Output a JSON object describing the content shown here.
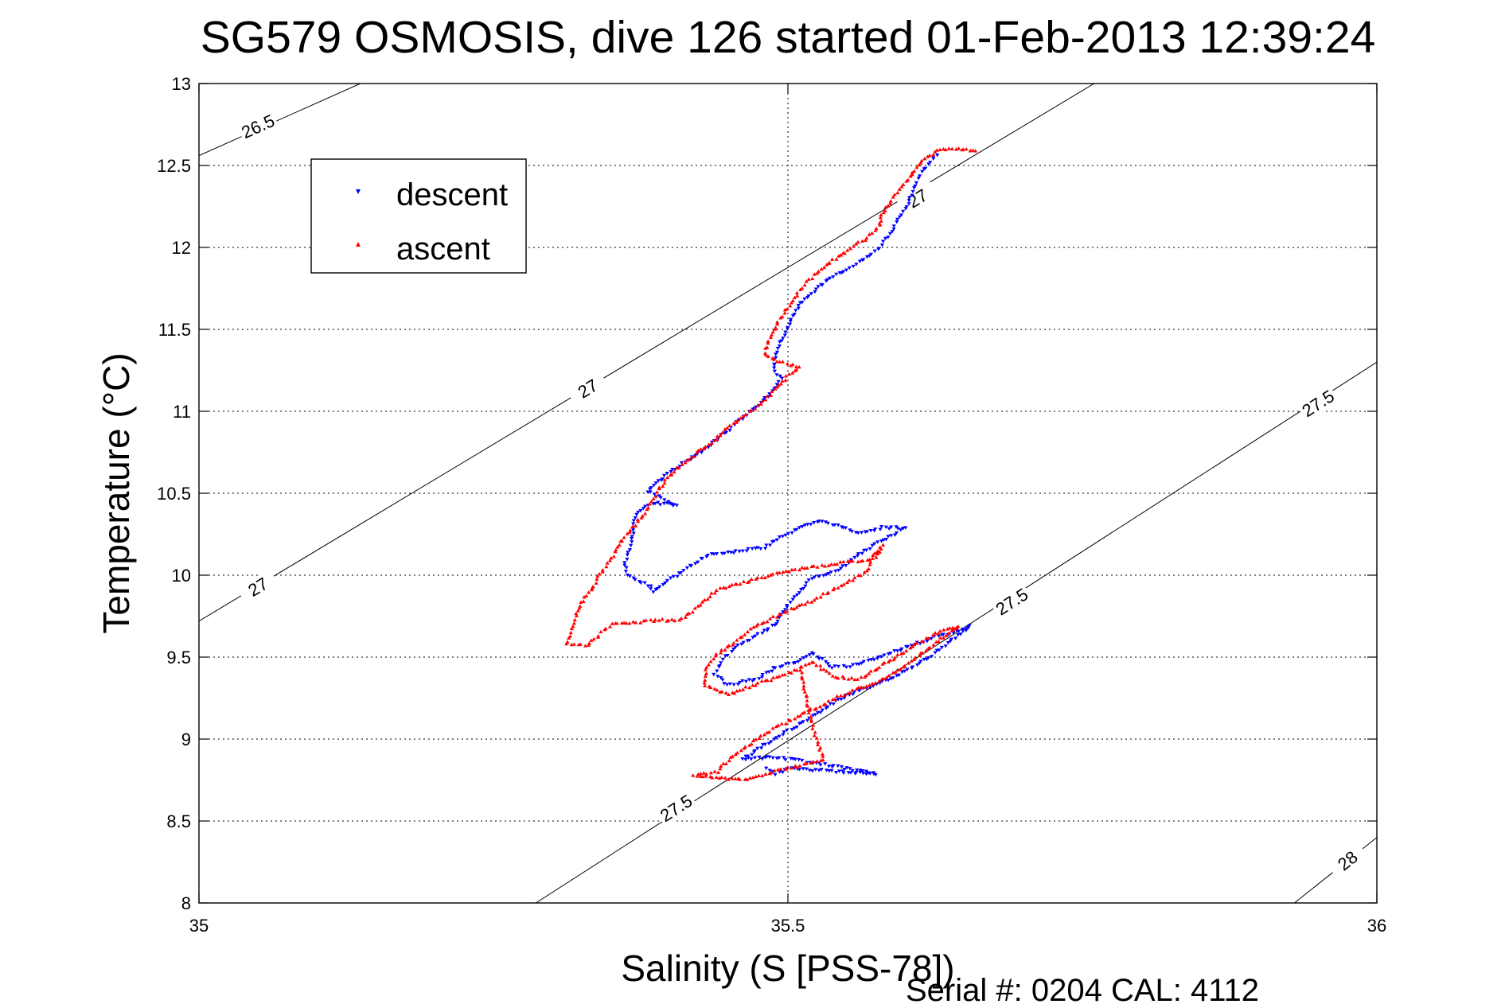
{
  "chart_data": {
    "type": "scatter",
    "title": "SG579 OSMOSIS, dive 126 started 01-Feb-2013 12:39:24",
    "xlabel": "Salinity (S [PSS-78])",
    "ylabel": "Temperature (°C)",
    "footnote": "Serial #: 0204  CAL: 4112",
    "xlim": [
      35,
      36
    ],
    "ylim": [
      8,
      13
    ],
    "x_ticks": [
      35,
      35.5,
      36
    ],
    "x_tick_labels": [
      "35",
      "35.5",
      "36"
    ],
    "y_ticks": [
      8,
      8.5,
      9,
      9.5,
      10,
      10.5,
      11,
      11.5,
      12,
      12.5,
      13
    ],
    "y_tick_labels": [
      "8",
      "8.5",
      "9",
      "9.5",
      "10",
      "10.5",
      "11",
      "11.5",
      "12",
      "12.5",
      "13"
    ],
    "grid": true,
    "legend_position": "top-left",
    "isopycnals": [
      {
        "label": "26.5",
        "points": [
          [
            35,
            12.56
          ],
          [
            35.137,
            13.0
          ]
        ],
        "label_at": [
          35.05,
          12.74
        ]
      },
      {
        "label": "27",
        "points": [
          [
            35,
            9.72
          ],
          [
            35.76,
            13.0
          ]
        ],
        "label_at": [
          35.05,
          9.93
        ]
      },
      {
        "label": "27",
        "points": [
          [
            35,
            9.72
          ],
          [
            35.76,
            13.0
          ]
        ],
        "label_at": [
          35.33,
          11.14
        ]
      },
      {
        "label": "27",
        "points": [
          [
            35,
            9.72
          ],
          [
            35.76,
            13.0
          ]
        ],
        "label_at": [
          35.61,
          12.3
        ]
      },
      {
        "label": "27.5",
        "points": [
          [
            35.286,
            8.0
          ],
          [
            36,
            11.3
          ]
        ],
        "label_at": [
          35.405,
          8.58
        ]
      },
      {
        "label": "27.5",
        "points": [
          [
            35.286,
            8.0
          ],
          [
            36,
            11.3
          ]
        ],
        "label_at": [
          35.69,
          9.84
        ]
      },
      {
        "label": "27.5",
        "points": [
          [
            35.286,
            8.0
          ],
          [
            36,
            11.3
          ]
        ],
        "label_at": [
          35.95,
          11.05
        ]
      },
      {
        "label": "28",
        "points": [
          [
            35.93,
            8.0
          ],
          [
            36,
            8.4
          ]
        ],
        "label_at": [
          35.975,
          8.26
        ]
      }
    ],
    "series": [
      {
        "name": "descent",
        "color": "#0000ff",
        "marker": "triangle-down",
        "path": [
          [
            35.626,
            12.57
          ],
          [
            35.621,
            12.52
          ],
          [
            35.614,
            12.46
          ],
          [
            35.61,
            12.4
          ],
          [
            35.606,
            12.34
          ],
          [
            35.603,
            12.28
          ],
          [
            35.598,
            12.22
          ],
          [
            35.592,
            12.15
          ],
          [
            35.585,
            12.07
          ],
          [
            35.578,
            12.0
          ],
          [
            35.565,
            11.93
          ],
          [
            35.548,
            11.86
          ],
          [
            35.532,
            11.79
          ],
          [
            35.518,
            11.71
          ],
          [
            35.508,
            11.63
          ],
          [
            35.502,
            11.55
          ],
          [
            35.497,
            11.47
          ],
          [
            35.492,
            11.4
          ],
          [
            35.489,
            11.33
          ],
          [
            35.488,
            11.26
          ],
          [
            35.494,
            11.2
          ],
          [
            35.49,
            11.15
          ],
          [
            35.483,
            11.09
          ],
          [
            35.474,
            11.03
          ],
          [
            35.461,
            10.96
          ],
          [
            35.45,
            10.89
          ],
          [
            35.44,
            10.83
          ],
          [
            35.428,
            10.76
          ],
          [
            35.415,
            10.7
          ],
          [
            35.4,
            10.63
          ],
          [
            35.39,
            10.57
          ],
          [
            35.381,
            10.51
          ],
          [
            35.405,
            10.43
          ],
          [
            35.387,
            10.44
          ],
          [
            35.375,
            10.4
          ],
          [
            35.37,
            10.33
          ],
          [
            35.368,
            10.24
          ],
          [
            35.366,
            10.16
          ],
          [
            35.362,
            10.08
          ],
          [
            35.363,
            10.0
          ],
          [
            35.383,
            9.93
          ],
          [
            35.385,
            9.9
          ],
          [
            35.43,
            10.12
          ],
          [
            35.48,
            10.17
          ],
          [
            35.495,
            10.24
          ],
          [
            35.515,
            10.3
          ],
          [
            35.53,
            10.33
          ],
          [
            35.56,
            10.26
          ],
          [
            35.58,
            10.29
          ],
          [
            35.6,
            10.29
          ],
          [
            35.565,
            10.15
          ],
          [
            35.545,
            10.04
          ],
          [
            35.52,
            9.98
          ],
          [
            35.5,
            9.82
          ],
          [
            35.49,
            9.71
          ],
          [
            35.48,
            9.66
          ],
          [
            35.458,
            9.57
          ],
          [
            35.445,
            9.49
          ],
          [
            35.438,
            9.4
          ],
          [
            35.449,
            9.33
          ],
          [
            35.475,
            9.37
          ],
          [
            35.49,
            9.44
          ],
          [
            35.507,
            9.47
          ],
          [
            35.52,
            9.53
          ],
          [
            35.538,
            9.44
          ],
          [
            35.555,
            9.45
          ],
          [
            35.58,
            9.51
          ],
          [
            35.6,
            9.56
          ],
          [
            35.625,
            9.62
          ],
          [
            35.64,
            9.65
          ],
          [
            35.655,
            9.69
          ],
          [
            35.62,
            9.5
          ],
          [
            35.6,
            9.41
          ],
          [
            35.59,
            9.38
          ],
          [
            35.567,
            9.31
          ],
          [
            35.545,
            9.25
          ],
          [
            35.525,
            9.16
          ],
          [
            35.505,
            9.07
          ],
          [
            35.49,
            9.01
          ],
          [
            35.475,
            8.94
          ],
          [
            35.462,
            8.88
          ],
          [
            35.485,
            8.89
          ],
          [
            35.51,
            8.87
          ],
          [
            35.55,
            8.82
          ],
          [
            35.575,
            8.79
          ],
          [
            35.5,
            8.82
          ],
          [
            35.49,
            8.79
          ],
          [
            35.48,
            8.83
          ]
        ]
      },
      {
        "name": "ascent",
        "color": "#ff0000",
        "marker": "triangle-up",
        "path": [
          [
            35.66,
            12.59
          ],
          [
            35.642,
            12.6
          ],
          [
            35.627,
            12.59
          ],
          [
            35.616,
            12.54
          ],
          [
            35.608,
            12.47
          ],
          [
            35.6,
            12.4
          ],
          [
            35.593,
            12.33
          ],
          [
            35.585,
            12.26
          ],
          [
            35.58,
            12.2
          ],
          [
            35.578,
            12.13
          ],
          [
            35.565,
            12.05
          ],
          [
            35.551,
            11.98
          ],
          [
            35.536,
            11.91
          ],
          [
            35.522,
            11.83
          ],
          [
            35.51,
            11.74
          ],
          [
            35.5,
            11.63
          ],
          [
            35.49,
            11.53
          ],
          [
            35.484,
            11.43
          ],
          [
            35.48,
            11.36
          ],
          [
            35.488,
            11.31
          ],
          [
            35.51,
            11.27
          ],
          [
            35.501,
            11.22
          ],
          [
            35.492,
            11.16
          ],
          [
            35.483,
            11.09
          ],
          [
            35.472,
            11.02
          ],
          [
            35.458,
            10.95
          ],
          [
            35.445,
            10.87
          ],
          [
            35.433,
            10.8
          ],
          [
            35.42,
            10.73
          ],
          [
            35.408,
            10.66
          ],
          [
            35.398,
            10.59
          ],
          [
            35.39,
            10.52
          ],
          [
            35.385,
            10.45
          ],
          [
            35.378,
            10.38
          ],
          [
            35.367,
            10.28
          ],
          [
            35.358,
            10.2
          ],
          [
            35.352,
            10.12
          ],
          [
            35.342,
            10.02
          ],
          [
            35.334,
            9.92
          ],
          [
            35.325,
            9.83
          ],
          [
            35.32,
            9.75
          ],
          [
            35.316,
            9.67
          ],
          [
            35.313,
            9.58
          ],
          [
            35.33,
            9.57
          ],
          [
            35.35,
            9.7
          ],
          [
            35.38,
            9.72
          ],
          [
            35.41,
            9.73
          ],
          [
            35.44,
            9.91
          ],
          [
            35.46,
            9.95
          ],
          [
            35.49,
            10.01
          ],
          [
            35.52,
            10.05
          ],
          [
            35.55,
            10.08
          ],
          [
            35.57,
            10.1
          ],
          [
            35.58,
            10.18
          ],
          [
            35.565,
            10.01
          ],
          [
            35.54,
            9.92
          ],
          [
            35.52,
            9.84
          ],
          [
            35.505,
            9.8
          ],
          [
            35.47,
            9.68
          ],
          [
            35.455,
            9.59
          ],
          [
            35.44,
            9.52
          ],
          [
            35.43,
            9.42
          ],
          [
            35.43,
            9.33
          ],
          [
            35.45,
            9.27
          ],
          [
            35.475,
            9.34
          ],
          [
            35.5,
            9.4
          ],
          [
            35.52,
            9.47
          ],
          [
            35.54,
            9.38
          ],
          [
            35.56,
            9.36
          ],
          [
            35.58,
            9.45
          ],
          [
            35.61,
            9.58
          ],
          [
            35.63,
            9.66
          ],
          [
            35.645,
            9.69
          ],
          [
            35.6,
            9.45
          ],
          [
            35.58,
            9.36
          ],
          [
            35.55,
            9.28
          ],
          [
            35.53,
            9.21
          ],
          [
            35.5,
            9.11
          ],
          [
            35.48,
            9.03
          ],
          [
            35.46,
            8.93
          ],
          [
            35.45,
            8.87
          ],
          [
            35.44,
            8.8
          ],
          [
            35.42,
            8.78
          ],
          [
            35.46,
            8.75
          ],
          [
            35.5,
            8.82
          ],
          [
            35.53,
            8.87
          ],
          [
            35.52,
            9.1
          ],
          [
            35.51,
            9.46
          ]
        ]
      }
    ]
  }
}
